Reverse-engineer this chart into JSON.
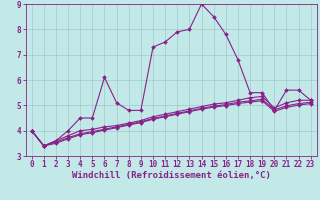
{
  "xlabel": "Windchill (Refroidissement éolien,°C)",
  "xlim": [
    -0.5,
    23.5
  ],
  "ylim": [
    3,
    9
  ],
  "yticks": [
    3,
    4,
    5,
    6,
    7,
    8,
    9
  ],
  "xticks": [
    0,
    1,
    2,
    3,
    4,
    5,
    6,
    7,
    8,
    9,
    10,
    11,
    12,
    13,
    14,
    15,
    16,
    17,
    18,
    19,
    20,
    21,
    22,
    23
  ],
  "background_color": "#c2e8e8",
  "grid_color": "#a0cccc",
  "line_color": "#882288",
  "line1_y": [
    4.0,
    3.4,
    3.6,
    4.0,
    4.5,
    4.5,
    6.1,
    5.1,
    4.8,
    4.8,
    7.3,
    7.5,
    7.9,
    8.0,
    9.0,
    8.5,
    7.8,
    6.8,
    5.5,
    5.5,
    4.8,
    5.6,
    5.6,
    5.2
  ],
  "line2_y": [
    4.0,
    3.4,
    3.6,
    3.8,
    4.0,
    4.05,
    4.15,
    4.2,
    4.3,
    4.4,
    4.55,
    4.65,
    4.75,
    4.85,
    4.95,
    5.05,
    5.1,
    5.2,
    5.3,
    5.35,
    4.9,
    5.1,
    5.2,
    5.2
  ],
  "line3_y": [
    4.0,
    3.4,
    3.55,
    3.72,
    3.88,
    3.96,
    4.06,
    4.15,
    4.25,
    4.35,
    4.48,
    4.58,
    4.68,
    4.78,
    4.88,
    4.97,
    5.03,
    5.12,
    5.18,
    5.24,
    4.82,
    4.98,
    5.07,
    5.12
  ],
  "line4_y": [
    4.0,
    3.4,
    3.5,
    3.68,
    3.84,
    3.92,
    4.02,
    4.12,
    4.22,
    4.32,
    4.45,
    4.55,
    4.65,
    4.75,
    4.85,
    4.93,
    4.99,
    5.07,
    5.13,
    5.18,
    4.76,
    4.92,
    5.01,
    5.07
  ],
  "xlabel_fontsize": 6.5,
  "tick_fontsize": 5.5,
  "marker_size": 2.0,
  "linewidth": 0.8
}
